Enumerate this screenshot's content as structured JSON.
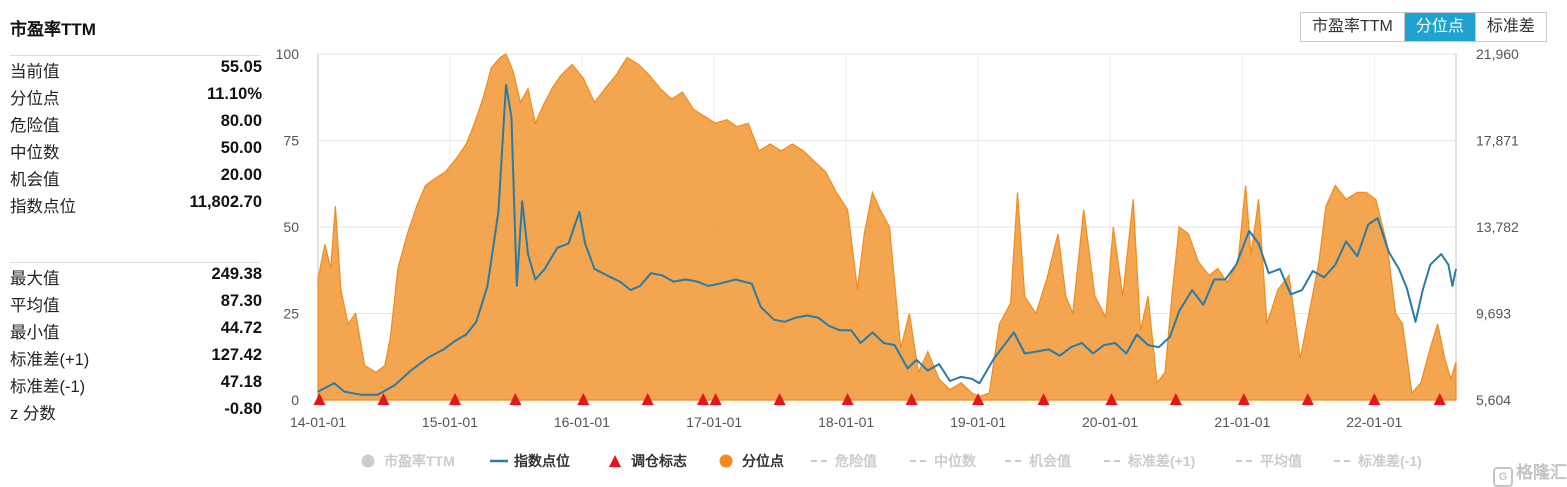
{
  "panel": {
    "title": "市盈率TTM",
    "stats_top": [
      {
        "label": "当前值",
        "value": "55.05"
      },
      {
        "label": "分位点",
        "value": "11.10%"
      },
      {
        "label": "危险值",
        "value": "80.00"
      },
      {
        "label": "中位数",
        "value": "50.00"
      },
      {
        "label": "机会值",
        "value": "20.00"
      },
      {
        "label": "指数点位",
        "value": "11,802.70"
      }
    ],
    "stats_bottom": [
      {
        "label": "最大值",
        "value": "249.38"
      },
      {
        "label": "平均值",
        "value": "87.30"
      },
      {
        "label": "最小值",
        "value": "44.72"
      },
      {
        "label": "标准差(+1)",
        "value": "127.42"
      },
      {
        "label": "标准差(-1)",
        "value": "47.18"
      },
      {
        "label": "z 分数",
        "value": "-0.80"
      }
    ]
  },
  "mode_switch": {
    "options": [
      "市盈率TTM",
      "分位点",
      "标准差"
    ],
    "selected": "分位点"
  },
  "chart_data": {
    "type": "area",
    "x_tick_labels": [
      "14-01-01",
      "15-01-01",
      "16-01-01",
      "17-01-01",
      "18-01-01",
      "19-01-01",
      "20-01-01",
      "21-01-01",
      "22-01-01"
    ],
    "x_range": [
      "2014-01-01",
      "2022-08-15"
    ],
    "left_axis": {
      "ticks": [
        "0",
        "25",
        "50",
        "75",
        "100"
      ],
      "range": [
        0,
        100
      ]
    },
    "right_axis": {
      "ticks": [
        "5,604",
        "9,693",
        "13,782",
        "17,871",
        "21,960"
      ],
      "range": [
        5604,
        21960
      ]
    },
    "grid": true,
    "legend_position": "bottom",
    "legend": [
      {
        "name": "市盈率TTM",
        "symbol": "circle",
        "color": "#cccccc",
        "active": false
      },
      {
        "name": "指数点位",
        "symbol": "line",
        "color": "#2a7ba6",
        "active": true
      },
      {
        "name": "调仓标志",
        "symbol": "triangle",
        "color": "#e8141c",
        "active": true
      },
      {
        "name": "分位点",
        "symbol": "circle",
        "color": "#f08c1e",
        "active": true
      },
      {
        "name": "危险值",
        "symbol": "dash",
        "color": "#cccccc",
        "active": false
      },
      {
        "name": "中位数",
        "symbol": "dash",
        "color": "#cccccc",
        "active": false
      },
      {
        "name": "机会值",
        "symbol": "dash",
        "color": "#cccccc",
        "active": false
      },
      {
        "name": "标准差(+1)",
        "symbol": "dash",
        "color": "#cccccc",
        "active": false
      },
      {
        "name": "平均值",
        "symbol": "dash",
        "color": "#cccccc",
        "active": false
      },
      {
        "name": "标准差(-1)",
        "symbol": "dash",
        "color": "#cccccc",
        "active": false
      }
    ],
    "series": [
      {
        "name": "分位点",
        "axis": "left",
        "color": "#f08c1e",
        "points": [
          [
            "2014-01-01",
            35
          ],
          [
            "2014-01-20",
            45
          ],
          [
            "2014-02-05",
            38
          ],
          [
            "2014-02-18",
            56
          ],
          [
            "2014-03-05",
            32
          ],
          [
            "2014-03-25",
            22
          ],
          [
            "2014-04-15",
            25
          ],
          [
            "2014-05-10",
            10
          ],
          [
            "2014-06-10",
            8
          ],
          [
            "2014-07-05",
            10
          ],
          [
            "2014-07-20",
            18
          ],
          [
            "2014-08-10",
            38
          ],
          [
            "2014-09-05",
            48
          ],
          [
            "2014-10-01",
            56
          ],
          [
            "2014-10-25",
            62
          ],
          [
            "2014-11-20",
            64
          ],
          [
            "2014-12-20",
            66
          ],
          [
            "2015-01-20",
            70
          ],
          [
            "2015-02-15",
            74
          ],
          [
            "2015-03-10",
            80
          ],
          [
            "2015-04-05",
            88
          ],
          [
            "2015-04-25",
            96
          ],
          [
            "2015-05-20",
            99
          ],
          [
            "2015-06-05",
            100
          ],
          [
            "2015-06-25",
            95
          ],
          [
            "2015-07-15",
            86
          ],
          [
            "2015-08-05",
            90
          ],
          [
            "2015-08-25",
            80
          ],
          [
            "2015-09-15",
            85
          ],
          [
            "2015-10-10",
            90
          ],
          [
            "2015-11-05",
            94
          ],
          [
            "2015-12-05",
            97
          ],
          [
            "2016-01-05",
            93
          ],
          [
            "2016-02-05",
            86
          ],
          [
            "2016-03-05",
            90
          ],
          [
            "2016-04-05",
            94
          ],
          [
            "2016-05-05",
            99
          ],
          [
            "2016-06-05",
            97
          ],
          [
            "2016-07-05",
            94
          ],
          [
            "2016-08-05",
            90
          ],
          [
            "2016-09-05",
            87
          ],
          [
            "2016-10-05",
            89
          ],
          [
            "2016-11-05",
            84
          ],
          [
            "2016-12-05",
            82
          ],
          [
            "2017-01-05",
            80
          ],
          [
            "2017-02-05",
            81
          ],
          [
            "2017-03-05",
            79
          ],
          [
            "2017-04-05",
            80
          ],
          [
            "2017-05-05",
            72
          ],
          [
            "2017-06-05",
            74
          ],
          [
            "2017-07-05",
            72
          ],
          [
            "2017-08-05",
            74
          ],
          [
            "2017-09-05",
            72
          ],
          [
            "2017-10-05",
            69
          ],
          [
            "2017-11-05",
            66
          ],
          [
            "2017-12-05",
            60
          ],
          [
            "2018-01-05",
            55
          ],
          [
            "2018-02-01",
            32
          ],
          [
            "2018-02-20",
            48
          ],
          [
            "2018-03-15",
            60
          ],
          [
            "2018-04-05",
            55
          ],
          [
            "2018-05-01",
            50
          ],
          [
            "2018-06-01",
            15
          ],
          [
            "2018-06-25",
            25
          ],
          [
            "2018-07-20",
            8
          ],
          [
            "2018-08-15",
            14
          ],
          [
            "2018-09-15",
            6
          ],
          [
            "2018-10-15",
            3
          ],
          [
            "2018-11-15",
            5
          ],
          [
            "2018-12-15",
            2
          ],
          [
            "2019-01-05",
            1
          ],
          [
            "2019-02-01",
            2
          ],
          [
            "2019-03-01",
            22
          ],
          [
            "2019-04-01",
            28
          ],
          [
            "2019-04-20",
            60
          ],
          [
            "2019-05-10",
            30
          ],
          [
            "2019-06-10",
            25
          ],
          [
            "2019-07-10",
            35
          ],
          [
            "2019-08-10",
            48
          ],
          [
            "2019-09-01",
            30
          ],
          [
            "2019-09-20",
            25
          ],
          [
            "2019-10-20",
            55
          ],
          [
            "2019-11-20",
            30
          ],
          [
            "2019-12-20",
            24
          ],
          [
            "2020-01-10",
            50
          ],
          [
            "2020-02-05",
            30
          ],
          [
            "2020-03-05",
            58
          ],
          [
            "2020-03-25",
            20
          ],
          [
            "2020-04-15",
            30
          ],
          [
            "2020-05-10",
            5
          ],
          [
            "2020-06-01",
            8
          ],
          [
            "2020-06-20",
            30
          ],
          [
            "2020-07-10",
            50
          ],
          [
            "2020-08-05",
            48
          ],
          [
            "2020-09-01",
            40
          ],
          [
            "2020-10-01",
            36
          ],
          [
            "2020-10-25",
            38
          ],
          [
            "2020-11-20",
            34
          ],
          [
            "2020-12-20",
            40
          ],
          [
            "2021-01-10",
            62
          ],
          [
            "2021-01-25",
            42
          ],
          [
            "2021-02-15",
            58
          ],
          [
            "2021-03-10",
            22
          ],
          [
            "2021-04-10",
            32
          ],
          [
            "2021-05-10",
            36
          ],
          [
            "2021-06-10",
            12
          ],
          [
            "2021-07-10",
            28
          ],
          [
            "2021-08-01",
            40
          ],
          [
            "2021-08-20",
            56
          ],
          [
            "2021-09-15",
            62
          ],
          [
            "2021-10-15",
            58
          ],
          [
            "2021-11-15",
            60
          ],
          [
            "2021-12-10",
            60
          ],
          [
            "2022-01-05",
            58
          ],
          [
            "2022-02-05",
            45
          ],
          [
            "2022-03-01",
            25
          ],
          [
            "2022-03-20",
            22
          ],
          [
            "2022-04-15",
            2
          ],
          [
            "2022-05-10",
            5
          ],
          [
            "2022-06-05",
            15
          ],
          [
            "2022-06-25",
            22
          ],
          [
            "2022-07-15",
            12
          ],
          [
            "2022-08-01",
            6
          ],
          [
            "2022-08-15",
            11
          ]
        ]
      },
      {
        "name": "指数点位",
        "axis": "right",
        "color": "#2a7ba6",
        "points": [
          [
            "2014-01-01",
            6000
          ],
          [
            "2014-02-15",
            6400
          ],
          [
            "2014-03-15",
            6000
          ],
          [
            "2014-05-01",
            5850
          ],
          [
            "2014-06-15",
            5850
          ],
          [
            "2014-08-01",
            6300
          ],
          [
            "2014-09-15",
            7000
          ],
          [
            "2014-11-01",
            7600
          ],
          [
            "2014-12-15",
            8000
          ],
          [
            "2015-01-15",
            8400
          ],
          [
            "2015-02-15",
            8700
          ],
          [
            "2015-03-15",
            9300
          ],
          [
            "2015-04-15",
            11000
          ],
          [
            "2015-05-15",
            14500
          ],
          [
            "2015-06-05",
            20500
          ],
          [
            "2015-06-20",
            19000
          ],
          [
            "2015-07-05",
            11000
          ],
          [
            "2015-07-20",
            15000
          ],
          [
            "2015-08-05",
            12500
          ],
          [
            "2015-08-25",
            11300
          ],
          [
            "2015-09-20",
            11800
          ],
          [
            "2015-10-25",
            12800
          ],
          [
            "2015-11-25",
            13000
          ],
          [
            "2015-12-25",
            14500
          ],
          [
            "2016-01-10",
            13000
          ],
          [
            "2016-02-05",
            11800
          ],
          [
            "2016-03-10",
            11500
          ],
          [
            "2016-04-15",
            11200
          ],
          [
            "2016-05-15",
            10800
          ],
          [
            "2016-06-10",
            11000
          ],
          [
            "2016-07-10",
            11600
          ],
          [
            "2016-08-10",
            11500
          ],
          [
            "2016-09-10",
            11200
          ],
          [
            "2016-10-15",
            11300
          ],
          [
            "2016-11-15",
            11200
          ],
          [
            "2016-12-15",
            11000
          ],
          [
            "2017-01-15",
            11100
          ],
          [
            "2017-03-01",
            11300
          ],
          [
            "2017-04-15",
            11100
          ],
          [
            "2017-05-10",
            10000
          ],
          [
            "2017-06-15",
            9400
          ],
          [
            "2017-07-15",
            9300
          ],
          [
            "2017-08-15",
            9500
          ],
          [
            "2017-09-15",
            9600
          ],
          [
            "2017-10-15",
            9500
          ],
          [
            "2017-11-15",
            9100
          ],
          [
            "2017-12-15",
            8900
          ],
          [
            "2018-01-15",
            8900
          ],
          [
            "2018-02-10",
            8300
          ],
          [
            "2018-03-15",
            8800
          ],
          [
            "2018-04-15",
            8300
          ],
          [
            "2018-05-15",
            8200
          ],
          [
            "2018-06-20",
            7100
          ],
          [
            "2018-07-15",
            7500
          ],
          [
            "2018-08-15",
            7000
          ],
          [
            "2018-09-15",
            7300
          ],
          [
            "2018-10-15",
            6500
          ],
          [
            "2018-11-15",
            6700
          ],
          [
            "2018-12-15",
            6600
          ],
          [
            "2019-01-05",
            6400
          ],
          [
            "2019-02-15",
            7600
          ],
          [
            "2019-04-10",
            8800
          ],
          [
            "2019-05-10",
            7800
          ],
          [
            "2019-06-15",
            7900
          ],
          [
            "2019-07-15",
            8000
          ],
          [
            "2019-08-15",
            7700
          ],
          [
            "2019-09-15",
            8100
          ],
          [
            "2019-10-15",
            8300
          ],
          [
            "2019-11-15",
            7800
          ],
          [
            "2019-12-15",
            8200
          ],
          [
            "2020-01-15",
            8300
          ],
          [
            "2020-02-15",
            7800
          ],
          [
            "2020-03-15",
            8700
          ],
          [
            "2020-04-15",
            8200
          ],
          [
            "2020-05-15",
            8100
          ],
          [
            "2020-06-15",
            8600
          ],
          [
            "2020-07-10",
            9800
          ],
          [
            "2020-08-15",
            10800
          ],
          [
            "2020-09-15",
            10100
          ],
          [
            "2020-10-15",
            11300
          ],
          [
            "2020-11-15",
            11300
          ],
          [
            "2020-12-15",
            12000
          ],
          [
            "2021-01-20",
            13600
          ],
          [
            "2021-02-15",
            13000
          ],
          [
            "2021-03-15",
            11600
          ],
          [
            "2021-04-15",
            11800
          ],
          [
            "2021-05-15",
            10600
          ],
          [
            "2021-06-15",
            10800
          ],
          [
            "2021-07-15",
            11700
          ],
          [
            "2021-08-15",
            11400
          ],
          [
            "2021-09-15",
            12000
          ],
          [
            "2021-10-15",
            13100
          ],
          [
            "2021-11-15",
            12400
          ],
          [
            "2021-12-15",
            13900
          ],
          [
            "2022-01-10",
            14200
          ],
          [
            "2022-02-10",
            12600
          ],
          [
            "2022-03-10",
            11800
          ],
          [
            "2022-04-01",
            10900
          ],
          [
            "2022-04-25",
            9300
          ],
          [
            "2022-05-15",
            10800
          ],
          [
            "2022-06-05",
            12000
          ],
          [
            "2022-07-05",
            12500
          ],
          [
            "2022-07-25",
            12000
          ],
          [
            "2022-08-05",
            11000
          ],
          [
            "2022-08-15",
            11800
          ]
        ]
      }
    ],
    "rebalance_markers": [
      "2014-01-05",
      "2014-07-01",
      "2015-01-15",
      "2015-07-01",
      "2016-01-05",
      "2016-07-01",
      "2016-12-01",
      "2017-01-05",
      "2017-07-01",
      "2018-01-05",
      "2018-07-01",
      "2019-01-01",
      "2019-07-01",
      "2020-01-05",
      "2020-07-01",
      "2021-01-05",
      "2021-07-01",
      "2022-01-01",
      "2022-07-01"
    ]
  },
  "watermark": {
    "icon": "G",
    "text": "格隆汇"
  }
}
